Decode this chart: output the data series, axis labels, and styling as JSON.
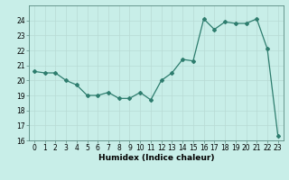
{
  "x": [
    0,
    1,
    2,
    3,
    4,
    5,
    6,
    7,
    8,
    9,
    10,
    11,
    12,
    13,
    14,
    15,
    16,
    17,
    18,
    19,
    20,
    21,
    22,
    23
  ],
  "y": [
    20.6,
    20.5,
    20.5,
    20.0,
    19.7,
    19.0,
    19.0,
    19.2,
    18.8,
    18.8,
    19.2,
    18.7,
    20.0,
    20.5,
    21.4,
    21.3,
    24.1,
    23.4,
    23.9,
    23.8,
    23.8,
    24.1,
    22.1,
    16.3
  ],
  "title": "",
  "xlabel": "Humidex (Indice chaleur)",
  "ylabel": "",
  "ylim": [
    16,
    25
  ],
  "xlim": [
    -0.5,
    23.5
  ],
  "yticks": [
    16,
    17,
    18,
    19,
    20,
    21,
    22,
    23,
    24
  ],
  "xticks": [
    0,
    1,
    2,
    3,
    4,
    5,
    6,
    7,
    8,
    9,
    10,
    11,
    12,
    13,
    14,
    15,
    16,
    17,
    18,
    19,
    20,
    21,
    22,
    23
  ],
  "line_color": "#2e7d6e",
  "marker": "D",
  "marker_size": 2.0,
  "bg_color": "#c8eee8",
  "grid_color": "#b8dad4",
  "tick_fontsize": 5.5,
  "xlabel_fontsize": 6.5,
  "line_width": 0.9
}
